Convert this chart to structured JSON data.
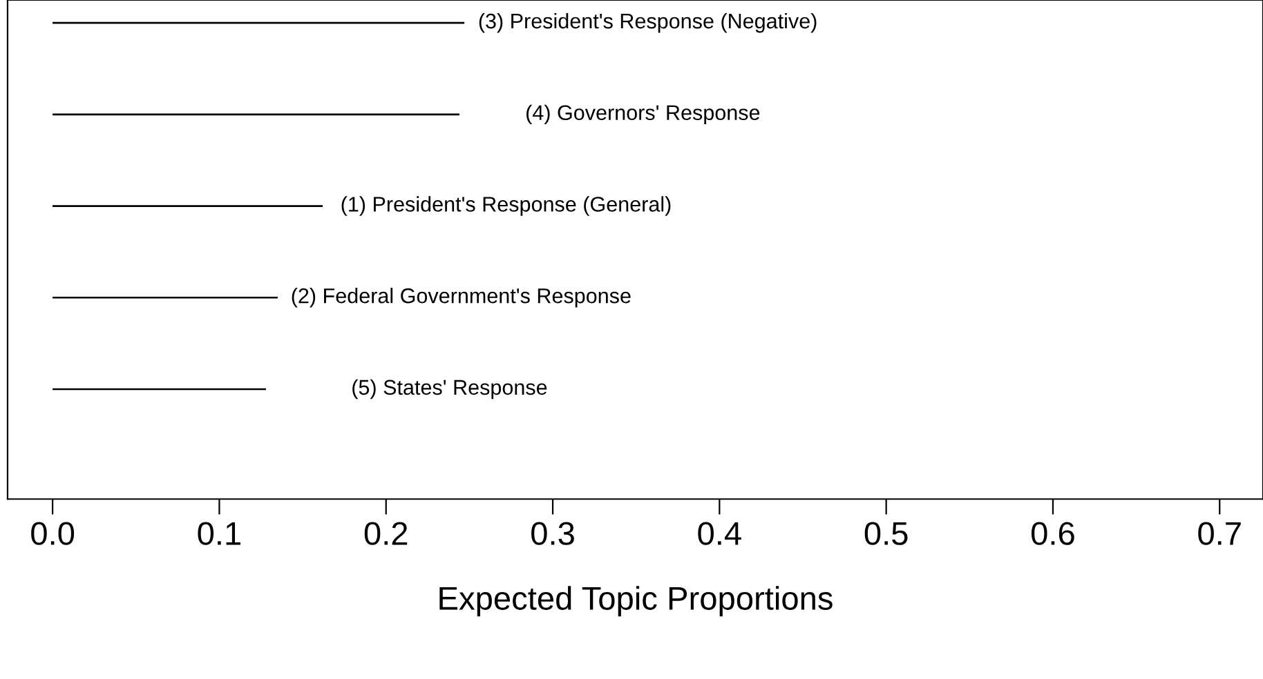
{
  "chart_data": {
    "type": "bar",
    "orientation": "horizontal",
    "xlabel": "Expected Topic Proportions",
    "categories": [
      "(3) President's Response (Negative)",
      "(4) Governors' Response",
      "(1) President's Response (General)",
      "(2) Federal Government's Response",
      "(5) States' Response"
    ],
    "values": [
      0.247,
      0.244,
      0.162,
      0.135,
      0.128
    ],
    "color": "#000000",
    "xlim": [
      -0.027,
      0.726
    ],
    "xticks": [
      {
        "value": 0,
        "label": "0.0"
      },
      0.1,
      0.2,
      0.3,
      0.4,
      0.5,
      0.6,
      0.7
    ],
    "tick_labels": "x",
    "grid": false,
    "legend": false
  }
}
